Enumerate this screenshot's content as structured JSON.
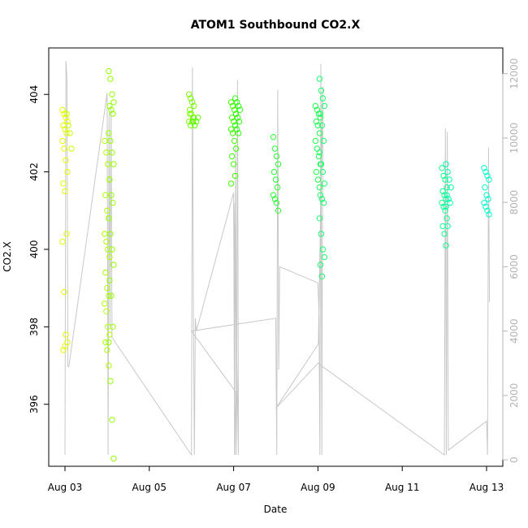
{
  "chart_data": {
    "type": "scatter",
    "title": "ATOM1 Southbound CO2.X",
    "xlabel": "Date",
    "ylabel": "CO2.X",
    "x_ticks": [
      "Aug 03",
      "Aug 05",
      "Aug 07",
      "Aug 09",
      "Aug 11",
      "Aug 13"
    ],
    "y_ticks": [
      396,
      398,
      400,
      402,
      404
    ],
    "y2_ticks": [
      0,
      2000,
      4000,
      6000,
      8000,
      10000,
      12000
    ],
    "xlim": [
      "2016-08-03",
      "2016-08-13"
    ],
    "ylim": [
      394.4,
      405.2
    ],
    "y2lim": [
      -200,
      12800
    ],
    "grid": false,
    "legend": "none",
    "colors": {
      "points_start": "#e6ff00",
      "points_mid": "#33ff00",
      "points_end": "#00ffcc",
      "secondary_line": "#c8c8c8",
      "right_axis": "#b3b3b3"
    },
    "series": [
      {
        "role": "points",
        "clusters": [
          {
            "date": "2016-08-03",
            "values": [
              403.6,
              403.5,
              403.4,
              403.3,
              403.2,
              403.1,
              403.0,
              402.8,
              402.6,
              402.3,
              402.0,
              401.7,
              401.5,
              400.4,
              400.2,
              398.9,
              397.8,
              397.6,
              397.4,
              397.5
            ]
          },
          {
            "date": "2016-08-03",
            "values": [
              403.5,
              403.2,
              403.0,
              402.6
            ]
          },
          {
            "date": "2016-08-04",
            "values": [
              402.8,
              402.5,
              402.2,
              401.8,
              401.4,
              401.0,
              400.8,
              400.4,
              400.2,
              400.0,
              399.8,
              399.4,
              399.0,
              398.8,
              398.6,
              398.4,
              398.0,
              397.8,
              397.6,
              397.4,
              397.0
            ]
          },
          {
            "date": "2016-08-04",
            "values": [
              404.6,
              404.4,
              404.0,
              403.8,
              403.7,
              403.6,
              403.5,
              403.0,
              402.8,
              402.5,
              402.2,
              401.8,
              401.4,
              401.2,
              400.8,
              400.4,
              400.0,
              399.6,
              399.2,
              398.8,
              398.0,
              397.6,
              396.6,
              395.6,
              394.6
            ]
          },
          {
            "date": "2016-08-06",
            "values": [
              404.0,
              403.9,
              403.8,
              403.7,
              403.6,
              403.5,
              403.4,
              403.3,
              403.2,
              403.3,
              403.4,
              403.5
            ]
          },
          {
            "date": "2016-08-06",
            "values": [
              403.3,
              403.2,
              403.3,
              403.4
            ]
          },
          {
            "date": "2016-08-07",
            "values": [
              403.8,
              403.7,
              403.6,
              403.5,
              403.4,
              403.3,
              403.2,
              403.1,
              403.0,
              402.8,
              402.6,
              402.4,
              402.2,
              401.9,
              401.7
            ]
          },
          {
            "date": "2016-08-07",
            "values": [
              403.9,
              403.8,
              403.7,
              403.6,
              403.5,
              403.4,
              403.3,
              403.2,
              403.1,
              403.0
            ]
          },
          {
            "date": "2016-08-08",
            "values": [
              402.9,
              402.6,
              402.4,
              402.2,
              402.0,
              401.8,
              401.6,
              401.4,
              401.3,
              401.2,
              401.0
            ]
          },
          {
            "date": "2016-08-09",
            "values": [
              403.7,
              403.6,
              403.5,
              403.4,
              403.3,
              403.2,
              403.0,
              402.8,
              402.6,
              402.4,
              402.2,
              402.0,
              401.8,
              401.6
            ]
          },
          {
            "date": "2016-08-09",
            "values": [
              404.4,
              404.1,
              403.9,
              403.7,
              403.5,
              403.2,
              402.8,
              402.5,
              402.2,
              402.0,
              401.7,
              401.4,
              401.3,
              401.2,
              400.8,
              400.4,
              400.0,
              399.8,
              399.6,
              399.3
            ]
          },
          {
            "date": "2016-08-12",
            "values": [
              402.1,
              401.9,
              401.8,
              401.6,
              401.5,
              401.4,
              401.3,
              401.2,
              401.1,
              401.0,
              400.8,
              400.6,
              400.4,
              400.1
            ]
          },
          {
            "date": "2016-08-12",
            "values": [
              402.2,
              402.0,
              401.8,
              401.6,
              401.4,
              401.3,
              401.2,
              401.1,
              400.6
            ]
          },
          {
            "date": "2016-08-13",
            "values": [
              402.1,
              402.0,
              401.9,
              401.8,
              401.6,
              401.4,
              401.3,
              401.2,
              401.1,
              401.0,
              400.9
            ]
          }
        ]
      },
      {
        "role": "secondary-line",
        "axis": "right",
        "points": [
          {
            "x": "2016-08-03",
            "y": 150
          },
          {
            "x": "2016-08-03",
            "y": 12400
          },
          {
            "x": "2016-08-03",
            "y": 11850
          },
          {
            "x": "2016-08-03",
            "y": 2900
          },
          {
            "x": "2016-08-03",
            "y": 2900
          },
          {
            "x": "2016-08-04",
            "y": 11400
          },
          {
            "x": "2016-08-04",
            "y": 150
          },
          {
            "x": "2016-08-04",
            "y": 10800
          },
          {
            "x": "2016-08-04",
            "y": 4200
          },
          {
            "x": "2016-08-04",
            "y": 11000
          },
          {
            "x": "2016-08-04",
            "y": 3800
          },
          {
            "x": "2016-08-06",
            "y": 150
          },
          {
            "x": "2016-08-06",
            "y": 12200
          },
          {
            "x": "2016-08-06",
            "y": 4600
          },
          {
            "x": "2016-08-06",
            "y": 150
          },
          {
            "x": "2016-08-06",
            "y": 4400
          },
          {
            "x": "2016-08-06",
            "y": 4000
          },
          {
            "x": "2016-08-07",
            "y": 8300
          },
          {
            "x": "2016-08-07",
            "y": 150
          },
          {
            "x": "2016-08-07",
            "y": 9800
          },
          {
            "x": "2016-08-07",
            "y": 150
          },
          {
            "x": "2016-08-07",
            "y": 11800
          },
          {
            "x": "2016-08-07",
            "y": 150
          },
          {
            "x": "2016-08-07",
            "y": 8000
          },
          {
            "x": "2016-08-07",
            "y": 150
          },
          {
            "x": "2016-08-07",
            "y": 2100
          },
          {
            "x": "2016-08-06",
            "y": 4000
          },
          {
            "x": "2016-08-08",
            "y": 4400
          },
          {
            "x": "2016-08-08",
            "y": 150
          },
          {
            "x": "2016-08-08",
            "y": 11500
          },
          {
            "x": "2016-08-08",
            "y": 2800
          },
          {
            "x": "2016-08-08",
            "y": 6000
          },
          {
            "x": "2016-08-09",
            "y": 5500
          },
          {
            "x": "2016-08-09",
            "y": 4600
          },
          {
            "x": "2016-08-09",
            "y": 150
          },
          {
            "x": "2016-08-09",
            "y": 12300
          },
          {
            "x": "2016-08-09",
            "y": 150
          },
          {
            "x": "2016-08-09",
            "y": 11600
          },
          {
            "x": "2016-08-09",
            "y": 3600
          },
          {
            "x": "2016-08-08",
            "y": 1600
          },
          {
            "x": "2016-08-09",
            "y": 3000
          },
          {
            "x": "2016-08-12",
            "y": 150
          },
          {
            "x": "2016-08-12",
            "y": 10300
          },
          {
            "x": "2016-08-12",
            "y": 150
          },
          {
            "x": "2016-08-12",
            "y": 10200
          },
          {
            "x": "2016-08-12",
            "y": 300
          },
          {
            "x": "2016-08-13",
            "y": 1200
          },
          {
            "x": "2016-08-13",
            "y": 150
          },
          {
            "x": "2016-08-13",
            "y": 9700
          },
          {
            "x": "2016-08-13",
            "y": 4900
          }
        ]
      }
    ]
  }
}
